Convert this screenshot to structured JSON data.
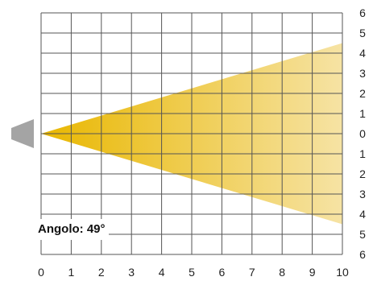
{
  "angle_label": "Angolo: 49°",
  "beam_angle_deg": 49,
  "x_axis": {
    "ticks": [
      "0",
      "1",
      "2",
      "3",
      "4",
      "5",
      "6",
      "7",
      "8",
      "9",
      "10"
    ],
    "range": [
      0,
      10
    ]
  },
  "y_axis": {
    "ticks": [
      "6",
      "5",
      "4",
      "3",
      "2",
      "1",
      "0",
      "1",
      "2",
      "3",
      "4",
      "5",
      "6"
    ],
    "range": [
      -6,
      6
    ]
  },
  "beam": {
    "from_x": 0,
    "to_x": 10,
    "spread_at_end": [
      4.5,
      -4.5
    ]
  },
  "colors": {
    "beam_start": "#e9b700",
    "beam_end": "#f6e3a4",
    "grid": "#555555",
    "source": "#a4a4a4"
  },
  "source_icon": "light-source-trapezoid"
}
